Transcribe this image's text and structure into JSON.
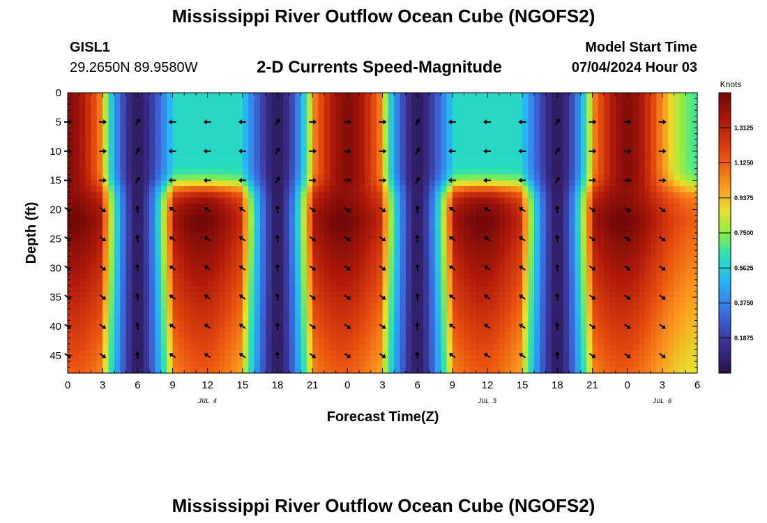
{
  "page": {
    "title_top": "Mississippi River Outflow Ocean Cube (NGOFS2)",
    "title_bottom": "Mississippi River Outflow Ocean Cube (NGOFS2)",
    "station_id": "GISL1",
    "station_coords": "29.2650N  89.9580W",
    "plot_title": "2-D Currents Speed-Magnitude",
    "model_start_label": "Model Start Time",
    "model_start_value": "07/04/2024 Hour 03"
  },
  "chart_data": {
    "type": "heatmap",
    "title": "2-D Currents Speed-Magnitude",
    "xlabel": "Forecast Time(Z)",
    "ylabel": "Depth (ft)",
    "xlim": [
      0,
      54
    ],
    "ylim": [
      48,
      0
    ],
    "x_tick_values": [
      0,
      3,
      6,
      9,
      12,
      15,
      18,
      21,
      24,
      27,
      30,
      33,
      36,
      39,
      42,
      45,
      48,
      51,
      54
    ],
    "x_tick_labels": [
      "0",
      "3",
      "6",
      "9",
      "12",
      "15",
      "18",
      "21",
      "0",
      "3",
      "6",
      "9",
      "12",
      "15",
      "18",
      "21",
      "0",
      "3",
      "6"
    ],
    "y_tick_values": [
      0,
      5,
      10,
      15,
      20,
      25,
      30,
      35,
      40,
      45
    ],
    "y_tick_labels": [
      "0",
      "5",
      "10",
      "15",
      "20",
      "25",
      "30",
      "35",
      "40",
      "45"
    ],
    "date_labels": [
      {
        "text": "JUL 4",
        "x": 12
      },
      {
        "text": "JUL 5",
        "x": 36
      },
      {
        "text": "JUL 6",
        "x": 51
      }
    ],
    "colorbar": {
      "label": "Knots",
      "min": 0,
      "max": 1.5,
      "tick_values": [
        0.1875,
        0.375,
        0.5625,
        0.75,
        0.9375,
        1.125,
        1.3125
      ],
      "tick_labels": [
        "0.1875",
        "0.3750",
        "0.5625",
        "0.7500",
        "0.9375",
        "1.1250",
        "1.3125"
      ]
    },
    "speed_model": {
      "surface_max_hours": [
        0,
        24,
        48
      ],
      "deep_max_hours": [
        0.5,
        11.5,
        23.5,
        35.5,
        47.5
      ],
      "slack_hours": [
        6,
        18,
        30,
        42
      ],
      "surface_peak_knots": 1.0,
      "deep_peak_knots": 1.45,
      "transition_depth_ft": 16
    },
    "arrow_rows_ft": [
      5,
      10,
      15,
      20,
      25,
      30,
      35,
      40,
      45
    ],
    "arrow_cols_hours": [
      0,
      3,
      6,
      9,
      12,
      15,
      18,
      21,
      24,
      27,
      30,
      33,
      36,
      39,
      42,
      45,
      48,
      51
    ],
    "arrow_directions": {
      "upper_flood": "east",
      "upper_ebb": "west",
      "lower_flood": "southeast",
      "lower_ebb": "northwest"
    }
  }
}
